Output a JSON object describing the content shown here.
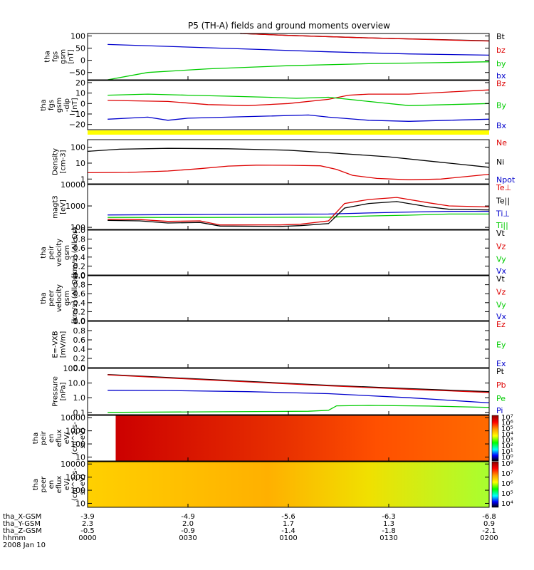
{
  "title": "P5 (TH-A) fields and ground moments overview",
  "colors": {
    "black": "#000000",
    "red": "#dd0000",
    "green": "#00cc00",
    "blue": "#0000cc",
    "yellow": "#ffff00"
  },
  "chart_data": [
    {
      "type": "line",
      "ylabel": [
        "tha",
        "fgs",
        "gsm",
        "[nT]"
      ],
      "ylim": [
        -80,
        110
      ],
      "log": false,
      "yticks": [
        {
          "v": 100,
          "t": "100"
        },
        {
          "v": 50,
          "t": "50"
        },
        {
          "v": 0,
          "t": "0"
        },
        {
          "v": -50,
          "t": "−50"
        }
      ],
      "legend": [
        {
          "t": "Bt",
          "c": "black"
        },
        {
          "t": "bz",
          "c": "red"
        },
        {
          "t": "by",
          "c": "green"
        },
        {
          "t": "bx",
          "c": "blue"
        }
      ],
      "series": [
        {
          "c": "black",
          "pts": [
            [
              0.38,
              110
            ],
            [
              0.5,
              102
            ],
            [
              0.7,
              92
            ],
            [
              0.9,
              84
            ],
            [
              1,
              80
            ]
          ]
        },
        {
          "c": "red",
          "pts": [
            [
              0.38,
              110
            ],
            [
              0.5,
              102
            ],
            [
              0.7,
              92
            ],
            [
              0.9,
              83
            ],
            [
              1,
              79
            ]
          ]
        },
        {
          "c": "blue",
          "pts": [
            [
              0.05,
              65
            ],
            [
              0.2,
              57
            ],
            [
              0.4,
              46
            ],
            [
              0.6,
              35
            ],
            [
              0.8,
              26
            ],
            [
              1,
              21
            ]
          ]
        },
        {
          "c": "green",
          "pts": [
            [
              0.05,
              -80
            ],
            [
              0.15,
              -50
            ],
            [
              0.3,
              -35
            ],
            [
              0.5,
              -22
            ],
            [
              0.7,
              -14
            ],
            [
              0.85,
              -10
            ],
            [
              1,
              -6
            ]
          ]
        }
      ]
    },
    {
      "type": "line",
      "ylabel": [
        "tha",
        "fgs",
        "gsm",
        "-dip",
        "[nT]"
      ],
      "ylim": [
        -25,
        22
      ],
      "log": false,
      "yticks": [
        {
          "v": 20,
          "t": "20"
        },
        {
          "v": 10,
          "t": "10"
        },
        {
          "v": 0,
          "t": "0"
        },
        {
          "v": -10,
          "t": "−10"
        },
        {
          "v": -20,
          "t": "−20"
        }
      ],
      "legend": [
        {
          "t": "Bz",
          "c": "red"
        },
        {
          "t": "By",
          "c": "green"
        },
        {
          "t": "Bx",
          "c": "blue"
        }
      ],
      "series": [
        {
          "c": "red",
          "pts": [
            [
              0.05,
              3
            ],
            [
              0.2,
              2
            ],
            [
              0.3,
              -1
            ],
            [
              0.4,
              -2
            ],
            [
              0.5,
              0
            ],
            [
              0.6,
              4
            ],
            [
              0.65,
              8
            ],
            [
              0.7,
              9
            ],
            [
              0.8,
              9
            ],
            [
              0.9,
              11
            ],
            [
              1,
              13
            ]
          ]
        },
        {
          "c": "green",
          "pts": [
            [
              0.05,
              8
            ],
            [
              0.15,
              9
            ],
            [
              0.25,
              8
            ],
            [
              0.35,
              7
            ],
            [
              0.45,
              6
            ],
            [
              0.52,
              5
            ],
            [
              0.6,
              6
            ],
            [
              0.65,
              4
            ],
            [
              0.7,
              2
            ],
            [
              0.8,
              -2
            ],
            [
              0.9,
              -1
            ],
            [
              1,
              0
            ]
          ]
        },
        {
          "c": "blue",
          "pts": [
            [
              0.05,
              -15
            ],
            [
              0.1,
              -14
            ],
            [
              0.15,
              -13
            ],
            [
              0.2,
              -16
            ],
            [
              0.25,
              -14
            ],
            [
              0.35,
              -13
            ],
            [
              0.45,
              -12
            ],
            [
              0.55,
              -11
            ],
            [
              0.6,
              -13
            ],
            [
              0.7,
              -16
            ],
            [
              0.8,
              -17
            ],
            [
              0.9,
              -16
            ],
            [
              1,
              -15
            ]
          ]
        }
      ]
    },
    {
      "type": "line",
      "ylabel": [
        "Density",
        "[cm-3]"
      ],
      "ylim": [
        0.5,
        300
      ],
      "log": true,
      "yticks": [
        {
          "v": 100,
          "t": "100"
        },
        {
          "v": 10,
          "t": "10"
        },
        {
          "v": 1,
          "t": "1"
        }
      ],
      "legend": [
        {
          "t": "Ne",
          "c": "red"
        },
        {
          "t": "Ni",
          "c": "black"
        },
        {
          "t": "Npot",
          "c": "blue"
        }
      ],
      "series": [
        {
          "c": "black",
          "pts": [
            [
              0,
              55
            ],
            [
              0.08,
              75
            ],
            [
              0.2,
              85
            ],
            [
              0.35,
              80
            ],
            [
              0.5,
              65
            ],
            [
              0.62,
              42
            ],
            [
              0.75,
              25
            ],
            [
              0.87,
              12
            ],
            [
              1,
              5.5
            ]
          ]
        },
        {
          "c": "red",
          "pts": [
            [
              0,
              2.5
            ],
            [
              0.1,
              2.6
            ],
            [
              0.2,
              3.2
            ],
            [
              0.28,
              4.5
            ],
            [
              0.35,
              6.5
            ],
            [
              0.42,
              7.5
            ],
            [
              0.5,
              7.3
            ],
            [
              0.58,
              6.8
            ],
            [
              0.62,
              4
            ],
            [
              0.66,
              1.7
            ],
            [
              0.72,
              1.1
            ],
            [
              0.8,
              0.9
            ],
            [
              0.88,
              1.0
            ],
            [
              1,
              2.0
            ]
          ]
        }
      ]
    },
    {
      "type": "line",
      "ylabel": [
        "magt3",
        "[eV]"
      ],
      "ylim": [
        80,
        10000
      ],
      "log": true,
      "yticks": [
        {
          "v": 10000,
          "t": "10000"
        },
        {
          "v": 1000,
          "t": "1000"
        },
        {
          "v": 100,
          "t": "100"
        }
      ],
      "legend": [
        {
          "t": "Te⊥",
          "c": "red"
        },
        {
          "t": "Te||",
          "c": "black"
        },
        {
          "t": "Ti⊥",
          "c": "blue"
        },
        {
          "t": "Ti||",
          "c": "green"
        }
      ],
      "series": [
        {
          "c": "blue",
          "pts": [
            [
              0.05,
              380
            ],
            [
              0.3,
              400
            ],
            [
              0.6,
              420
            ],
            [
              0.7,
              470
            ],
            [
              0.8,
              520
            ],
            [
              0.9,
              560
            ],
            [
              1,
              560
            ]
          ]
        },
        {
          "c": "green",
          "pts": [
            [
              0.05,
              290
            ],
            [
              0.3,
              290
            ],
            [
              0.6,
              300
            ],
            [
              0.7,
              340
            ],
            [
              0.8,
              370
            ],
            [
              0.9,
              420
            ],
            [
              1,
              420
            ]
          ]
        },
        {
          "c": "red",
          "pts": [
            [
              0.05,
              240
            ],
            [
              0.13,
              230
            ],
            [
              0.2,
              190
            ],
            [
              0.28,
              200
            ],
            [
              0.33,
              130
            ],
            [
              0.48,
              130
            ],
            [
              0.53,
              140
            ],
            [
              0.6,
              200
            ],
            [
              0.64,
              1300
            ],
            [
              0.7,
              2000
            ],
            [
              0.77,
              2500
            ],
            [
              0.85,
              1400
            ],
            [
              0.9,
              1000
            ],
            [
              1,
              900
            ]
          ]
        },
        {
          "c": "black",
          "pts": [
            [
              0.05,
              210
            ],
            [
              0.13,
              200
            ],
            [
              0.2,
              160
            ],
            [
              0.28,
              170
            ],
            [
              0.33,
              115
            ],
            [
              0.48,
              110
            ],
            [
              0.53,
              120
            ],
            [
              0.6,
              150
            ],
            [
              0.64,
              800
            ],
            [
              0.7,
              1300
            ],
            [
              0.77,
              1600
            ],
            [
              0.85,
              900
            ],
            [
              0.9,
              700
            ],
            [
              1,
              650
            ]
          ]
        }
      ]
    },
    {
      "type": "line",
      "ylabel": [
        "tha",
        "peir",
        "velocity",
        "gsm",
        "[km/s] (All Qs)"
      ],
      "ylim": [
        0,
        1
      ],
      "log": false,
      "yticks": [
        {
          "v": 0,
          "t": "0.0"
        },
        {
          "v": 0.2,
          "t": "0.2"
        },
        {
          "v": 0.4,
          "t": "0.4"
        },
        {
          "v": 0.6,
          "t": "0.6"
        },
        {
          "v": 0.8,
          "t": "0.8"
        },
        {
          "v": 1,
          "t": "1.0"
        }
      ],
      "legend": [
        {
          "t": "Vt",
          "c": "black"
        },
        {
          "t": "Vz",
          "c": "red"
        },
        {
          "t": "Vy",
          "c": "green"
        },
        {
          "t": "Vx",
          "c": "blue"
        }
      ],
      "series": []
    },
    {
      "type": "line",
      "ylabel": [
        "tha",
        "peer",
        "velocity",
        "gsm",
        "[km/s] (All Qs)"
      ],
      "ylim": [
        0,
        1
      ],
      "log": false,
      "yticks": [
        {
          "v": 0,
          "t": "0.0"
        },
        {
          "v": 0.2,
          "t": "0.2"
        },
        {
          "v": 0.4,
          "t": "0.4"
        },
        {
          "v": 0.6,
          "t": "0.6"
        },
        {
          "v": 0.8,
          "t": "0.8"
        },
        {
          "v": 1,
          "t": "1.0"
        }
      ],
      "legend": [
        {
          "t": "Vt",
          "c": "black"
        },
        {
          "t": "Vz",
          "c": "red"
        },
        {
          "t": "Vy",
          "c": "green"
        },
        {
          "t": "Vx",
          "c": "blue"
        }
      ],
      "series": []
    },
    {
      "type": "line",
      "ylabel": [
        "E=-VXB",
        "[mV/m]"
      ],
      "ylim": [
        0,
        1
      ],
      "log": false,
      "yticks": [
        {
          "v": 0,
          "t": "0.0"
        },
        {
          "v": 0.2,
          "t": "0.2"
        },
        {
          "v": 0.4,
          "t": "0.4"
        },
        {
          "v": 0.6,
          "t": "0.6"
        },
        {
          "v": 0.8,
          "t": "0.8"
        },
        {
          "v": 1,
          "t": "1.0"
        }
      ],
      "legend": [
        {
          "t": "Ez",
          "c": "red"
        },
        {
          "t": "Ey",
          "c": "green"
        },
        {
          "t": "Ex",
          "c": "blue"
        }
      ],
      "series": []
    },
    {
      "type": "line",
      "ylabel": [
        "Pressure",
        "[nPa]"
      ],
      "ylim": [
        0.07,
        100
      ],
      "log": true,
      "yticks": [
        {
          "v": 100,
          "t": "100.0"
        },
        {
          "v": 10,
          "t": "10.0"
        },
        {
          "v": 1,
          "t": "1.0"
        },
        {
          "v": 0.1,
          "t": "0.1"
        }
      ],
      "legend": [
        {
          "t": "Pt",
          "c": "black"
        },
        {
          "t": "Pb",
          "c": "red"
        },
        {
          "t": "Pe",
          "c": "green"
        },
        {
          "t": "Pi",
          "c": "blue"
        }
      ],
      "series": [
        {
          "c": "black",
          "pts": [
            [
              0.05,
              38
            ],
            [
              0.2,
              24
            ],
            [
              0.4,
              13
            ],
            [
              0.6,
              7
            ],
            [
              0.8,
              4.2
            ],
            [
              1,
              2.6
            ]
          ]
        },
        {
          "c": "red",
          "pts": [
            [
              0.05,
              36
            ],
            [
              0.2,
              22
            ],
            [
              0.4,
              12
            ],
            [
              0.6,
              6.5
            ],
            [
              0.8,
              3.8
            ],
            [
              1,
              2.3
            ]
          ]
        },
        {
          "c": "blue",
          "pts": [
            [
              0.05,
              3.2
            ],
            [
              0.2,
              3.1
            ],
            [
              0.4,
              2.6
            ],
            [
              0.6,
              1.9
            ],
            [
              0.8,
              1.0
            ],
            [
              1,
              0.45
            ]
          ]
        },
        {
          "c": "green",
          "pts": [
            [
              0.05,
              0.1
            ],
            [
              0.3,
              0.11
            ],
            [
              0.55,
              0.12
            ],
            [
              0.6,
              0.14
            ],
            [
              0.62,
              0.28
            ],
            [
              0.7,
              0.3
            ],
            [
              0.85,
              0.27
            ],
            [
              1,
              0.22
            ]
          ]
        }
      ]
    },
    {
      "type": "heatmap",
      "ylabel": [
        "tha",
        "peir",
        "en",
        "eflux",
        "eV/",
        "(cm^2-s-",
        "sr-eV)"
      ],
      "ylim": [
        5,
        15000
      ],
      "log": true,
      "yticks": [
        {
          "v": 10000,
          "t": "10000"
        },
        {
          "v": 1000,
          "t": "1000"
        },
        {
          "v": 100,
          "t": "100"
        },
        {
          "v": 10,
          "t": "10"
        }
      ],
      "colorbar": [
        "10⁷",
        "10⁶",
        "10⁵",
        "10⁴",
        "10³",
        "10²",
        "10¹",
        "10⁰"
      ]
    },
    {
      "type": "heatmap",
      "ylabel": [
        "tha",
        "peer",
        "en",
        "eflux",
        "eV/",
        "(cm^2-s-",
        "sr-eV)"
      ],
      "ylim": [
        5,
        15000
      ],
      "log": true,
      "yticks": [
        {
          "v": 10000,
          "t": "10000"
        },
        {
          "v": 1000,
          "t": "1000"
        },
        {
          "v": 100,
          "t": "100"
        },
        {
          "v": 10,
          "t": "10"
        }
      ],
      "colorbar": [
        "10⁸",
        "10⁷",
        "10⁶",
        "10⁵",
        "10⁴"
      ]
    }
  ],
  "xaxis": {
    "rows": [
      {
        "label": "tha_X-GSM",
        "values": [
          "-3.9",
          "-4.9",
          "-5.6",
          "-6.3",
          "-6.8"
        ]
      },
      {
        "label": "tha_Y-GSM",
        "values": [
          "2.3",
          "2.0",
          "1.7",
          "1.3",
          "0.9"
        ]
      },
      {
        "label": "tha_Z-GSM",
        "values": [
          "-0.5",
          "-0.9",
          "-1.4",
          "-1.8",
          "-2.1"
        ]
      },
      {
        "label": "hhmm",
        "values": [
          "0000",
          "0030",
          "0100",
          "0130",
          "0200"
        ]
      }
    ],
    "date": "2008 Jan 10"
  }
}
